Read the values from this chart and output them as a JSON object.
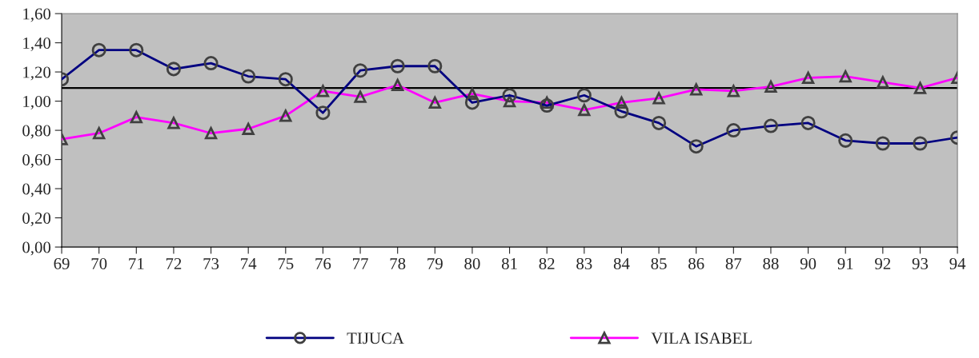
{
  "chart_data": {
    "type": "line",
    "categories": [
      "69",
      "70",
      "71",
      "72",
      "73",
      "74",
      "75",
      "76",
      "77",
      "78",
      "79",
      "80",
      "81",
      "82",
      "83",
      "84",
      "85",
      "86",
      "87",
      "88",
      "90",
      "91",
      "92",
      "93",
      "94"
    ],
    "series": [
      {
        "name": "TIJUCA",
        "color": "#000080",
        "marker": "circle",
        "values": [
          1.15,
          1.35,
          1.35,
          1.22,
          1.26,
          1.17,
          1.15,
          0.92,
          1.21,
          1.24,
          1.24,
          0.99,
          1.04,
          0.97,
          1.04,
          0.93,
          0.85,
          0.69,
          0.8,
          0.83,
          0.85,
          0.73,
          0.71,
          0.71,
          0.75
        ]
      },
      {
        "name": "VILA ISABEL",
        "color": "#ff00ff",
        "marker": "triangle",
        "values": [
          0.74,
          0.78,
          0.89,
          0.85,
          0.78,
          0.81,
          0.9,
          1.07,
          1.03,
          1.11,
          0.99,
          1.05,
          1.0,
          0.99,
          0.94,
          0.99,
          1.02,
          1.08,
          1.07,
          1.1,
          1.16,
          1.17,
          1.13,
          1.09,
          1.16
        ]
      }
    ],
    "ylim": [
      0,
      1.6
    ],
    "yticks": [
      {
        "value": 0,
        "label": "0,00"
      },
      {
        "value": 0.2,
        "label": "0,20"
      },
      {
        "value": 0.4,
        "label": "0,40"
      },
      {
        "value": 0.6,
        "label": "0,60"
      },
      {
        "value": 0.8,
        "label": "0,80"
      },
      {
        "value": 1.0,
        "label": "1,00"
      },
      {
        "value": 1.2,
        "label": "1,20"
      },
      {
        "value": 1.4,
        "label": "1,40"
      },
      {
        "value": 1.6,
        "label": "1,60"
      }
    ],
    "ref_lines": [
      {
        "axis": "y",
        "value": 1.09,
        "color": "#000000"
      }
    ],
    "grid": false,
    "legend": "bottom"
  }
}
